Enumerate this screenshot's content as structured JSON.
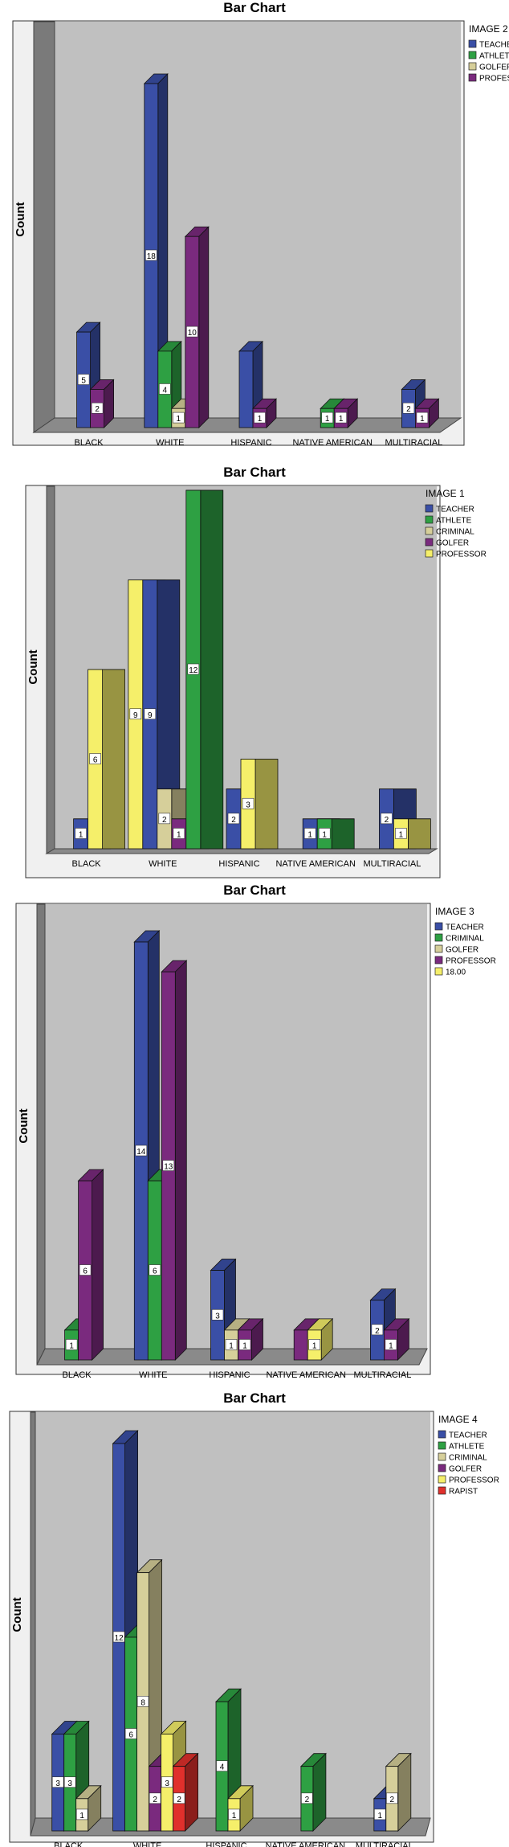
{
  "chart_data": [
    {
      "type": "bar",
      "title": "Bar Chart",
      "legend_title": "IMAGE 2",
      "ylabel": "Count",
      "xlabel": "",
      "categories": [
        "BLACK",
        "WHITE",
        "HISPANIC",
        "NATIVE AMERICAN",
        "MULTIRACIAL"
      ],
      "ylim": [
        0,
        18
      ],
      "legend_position": "top-right",
      "grid": false,
      "series": [
        {
          "name": "TEACHER",
          "color": "#3a4fa6",
          "values": [
            5,
            18,
            4,
            0,
            2
          ],
          "labels": [
            "5",
            "18",
            "",
            "",
            "2"
          ]
        },
        {
          "name": "ATHLETE",
          "color": "#2ea043",
          "values": [
            0,
            4,
            0,
            1,
            0
          ],
          "labels": [
            "",
            "4",
            "",
            "1",
            ""
          ]
        },
        {
          "name": "GOLFER",
          "color": "#d6cf9a",
          "values": [
            0,
            1,
            0,
            0,
            0
          ],
          "labels": [
            "",
            "1",
            "",
            "",
            ""
          ]
        },
        {
          "name": "PROFESSOR",
          "color": "#7a2a7e",
          "values": [
            2,
            10,
            1,
            1,
            1
          ],
          "labels": [
            "2",
            "10",
            "1",
            "1",
            "1"
          ]
        }
      ]
    },
    {
      "type": "bar",
      "title": "Bar Chart",
      "legend_title": "IMAGE 1",
      "ylabel": "Count",
      "xlabel": "",
      "categories": [
        "BLACK",
        "WHITE",
        "HISPANIC",
        "NATIVE AMERICAN",
        "MULTIRACIAL"
      ],
      "ylim": [
        0,
        12
      ],
      "legend_position": "top-right",
      "grid": false,
      "series": [
        {
          "name": "TEACHER",
          "color": "#3a4fa6",
          "values": [
            1,
            9,
            2,
            1,
            2
          ],
          "labels": [
            "1",
            "9",
            "2",
            "1",
            "2"
          ]
        },
        {
          "name": "ATHLETE",
          "color": "#2ea043",
          "values": [
            0,
            12,
            0,
            1,
            0
          ],
          "labels": [
            "",
            "12",
            "",
            "1",
            ""
          ]
        },
        {
          "name": "CRIMINAL",
          "color": "#d6cf9a",
          "values": [
            0,
            2,
            0,
            0,
            0
          ],
          "labels": [
            "",
            "2",
            "",
            "",
            ""
          ]
        },
        {
          "name": "GOLFER",
          "color": "#7a2a7e",
          "values": [
            0,
            1,
            0,
            0,
            0
          ],
          "labels": [
            "",
            "1",
            "",
            "",
            ""
          ]
        },
        {
          "name": "PROFESSOR",
          "color": "#f5ef6a",
          "values": [
            6,
            9,
            3,
            0,
            1
          ],
          "labels": [
            "6",
            "9",
            "3",
            "",
            "1"
          ]
        }
      ]
    },
    {
      "type": "bar",
      "title": "Bar Chart",
      "legend_title": "IMAGE 3",
      "ylabel": "Count",
      "xlabel": "",
      "categories": [
        "BLACK",
        "WHITE",
        "HISPANIC",
        "NATIVE AMERICAN",
        "MULTIRACIAL"
      ],
      "ylim": [
        0,
        14
      ],
      "legend_position": "top-right",
      "grid": false,
      "series": [
        {
          "name": "TEACHER",
          "color": "#3a4fa6",
          "values": [
            0,
            14,
            3,
            0,
            2
          ],
          "labels": [
            "",
            "14",
            "3",
            "",
            "2"
          ]
        },
        {
          "name": "CRIMINAL",
          "color": "#2ea043",
          "values": [
            1,
            6,
            0,
            0,
            0
          ],
          "labels": [
            "1",
            "6",
            "",
            "",
            ""
          ]
        },
        {
          "name": "GOLFER",
          "color": "#d6cf9a",
          "values": [
            0,
            0,
            1,
            0,
            0
          ],
          "labels": [
            "",
            "",
            "1",
            "",
            ""
          ]
        },
        {
          "name": "PROFESSOR",
          "color": "#7a2a7e",
          "values": [
            6,
            13,
            1,
            1,
            1
          ],
          "labels": [
            "6",
            "13",
            "1",
            "",
            "1"
          ]
        },
        {
          "name": "18.00",
          "color": "#f5ef6a",
          "values": [
            0,
            0,
            0,
            1,
            0
          ],
          "labels": [
            "",
            "",
            "",
            "1",
            ""
          ]
        }
      ]
    },
    {
      "type": "bar",
      "title": "Bar Chart",
      "legend_title": "IMAGE 4",
      "ylabel": "Count",
      "xlabel": "",
      "categories": [
        "BLACK",
        "WHITE",
        "HISPANIC",
        "NATIVE AMERICAN",
        "MULTIRACIAL"
      ],
      "ylim": [
        0,
        12
      ],
      "legend_position": "top-right",
      "grid": false,
      "series": [
        {
          "name": "TEACHER",
          "color": "#3a4fa6",
          "values": [
            3,
            12,
            0,
            0,
            1
          ],
          "labels": [
            "3",
            "12",
            "",
            "",
            "1"
          ]
        },
        {
          "name": "ATHLETE",
          "color": "#2ea043",
          "values": [
            3,
            6,
            4,
            2,
            0
          ],
          "labels": [
            "3",
            "6",
            "4",
            "2",
            ""
          ]
        },
        {
          "name": "CRIMINAL",
          "color": "#d6cf9a",
          "values": [
            1,
            8,
            0,
            0,
            2
          ],
          "labels": [
            "1",
            "8",
            "",
            "",
            "2"
          ]
        },
        {
          "name": "GOLFER",
          "color": "#7a2a7e",
          "values": [
            0,
            2,
            0,
            0,
            0
          ],
          "labels": [
            "",
            "2",
            "",
            "",
            ""
          ]
        },
        {
          "name": "PROFESSOR",
          "color": "#f5ef6a",
          "values": [
            0,
            3,
            1,
            0,
            0
          ],
          "labels": [
            "",
            "3",
            "1",
            "",
            ""
          ]
        },
        {
          "name": "RAPIST",
          "color": "#e0302c",
          "values": [
            0,
            2,
            0,
            0,
            0
          ],
          "labels": [
            "",
            "2",
            "",
            "",
            ""
          ]
        }
      ]
    }
  ]
}
